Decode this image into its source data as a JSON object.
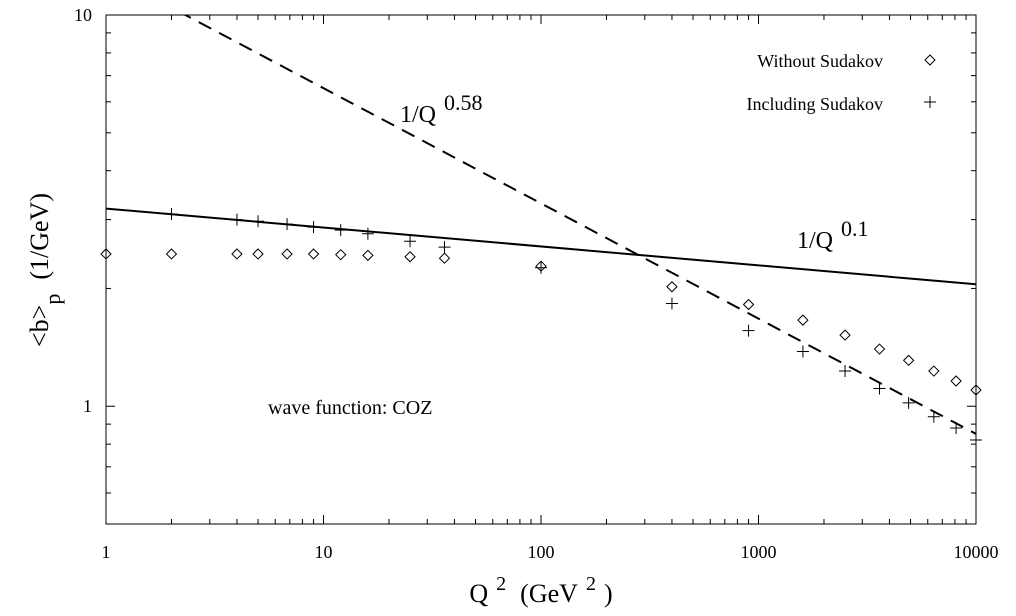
{
  "chart_data": {
    "type": "scatter",
    "title": "",
    "xlabel": "Q 2 (GeV 2 )",
    "ylabel": "<b>p (1/GeV)",
    "xscale": "log",
    "yscale": "log",
    "xlim": [
      1,
      10000
    ],
    "ylim": [
      0.5,
      10
    ],
    "x_ticks": [
      1,
      10,
      100,
      1000,
      10000
    ],
    "x_tick_labels": [
      "1",
      "10",
      "100",
      "1000",
      "10000"
    ],
    "y_ticks": [
      1,
      10
    ],
    "y_tick_labels": [
      "1",
      "10"
    ],
    "grid": false,
    "legend_position": "top-right",
    "series": [
      {
        "name": "Without Sudakov",
        "marker": "diamond",
        "x": [
          1,
          2,
          4,
          5,
          6.8,
          9,
          12,
          16,
          25,
          36,
          100,
          400,
          900,
          1600,
          2500,
          3600,
          4900,
          6400,
          8100,
          10000
        ],
        "y": [
          2.45,
          2.45,
          2.45,
          2.45,
          2.45,
          2.45,
          2.44,
          2.43,
          2.41,
          2.39,
          2.28,
          2.02,
          1.82,
          1.66,
          1.52,
          1.4,
          1.31,
          1.23,
          1.16,
          1.1
        ]
      },
      {
        "name": "Including Sudakov",
        "marker": "plus",
        "x": [
          2,
          4,
          5,
          6.8,
          9,
          12,
          16,
          25,
          36,
          100,
          400,
          900,
          1600,
          2500,
          3600,
          4900,
          6400,
          8100,
          10000
        ],
        "y": [
          3.1,
          3.0,
          2.97,
          2.92,
          2.87,
          2.82,
          2.76,
          2.64,
          2.55,
          2.26,
          1.83,
          1.56,
          1.38,
          1.23,
          1.11,
          1.02,
          0.94,
          0.88,
          0.82
        ]
      }
    ],
    "curves": [
      {
        "label": "1/Q 0.58",
        "style": "dashed",
        "x": [
          1.4,
          10000
        ],
        "y": [
          11.6,
          0.85
        ]
      },
      {
        "label": "1/Q 0.1",
        "style": "solid",
        "x": [
          1,
          10000
        ],
        "y": [
          3.2,
          2.05
        ]
      }
    ],
    "annotations": {
      "dashed_label_main": "1/Q",
      "dashed_label_exp": "0.58",
      "solid_label_main": "1/Q",
      "solid_label_exp": "0.1",
      "wave_function": "wave function: COZ"
    },
    "axis_text": {
      "x_main": "Q",
      "x_sup": "2",
      "x_unit_open": "(GeV",
      "x_unit_sup": "2",
      "x_unit_close": ")",
      "y_main": "<b>",
      "y_sub": "p",
      "y_unit": "(1/GeV)"
    }
  }
}
